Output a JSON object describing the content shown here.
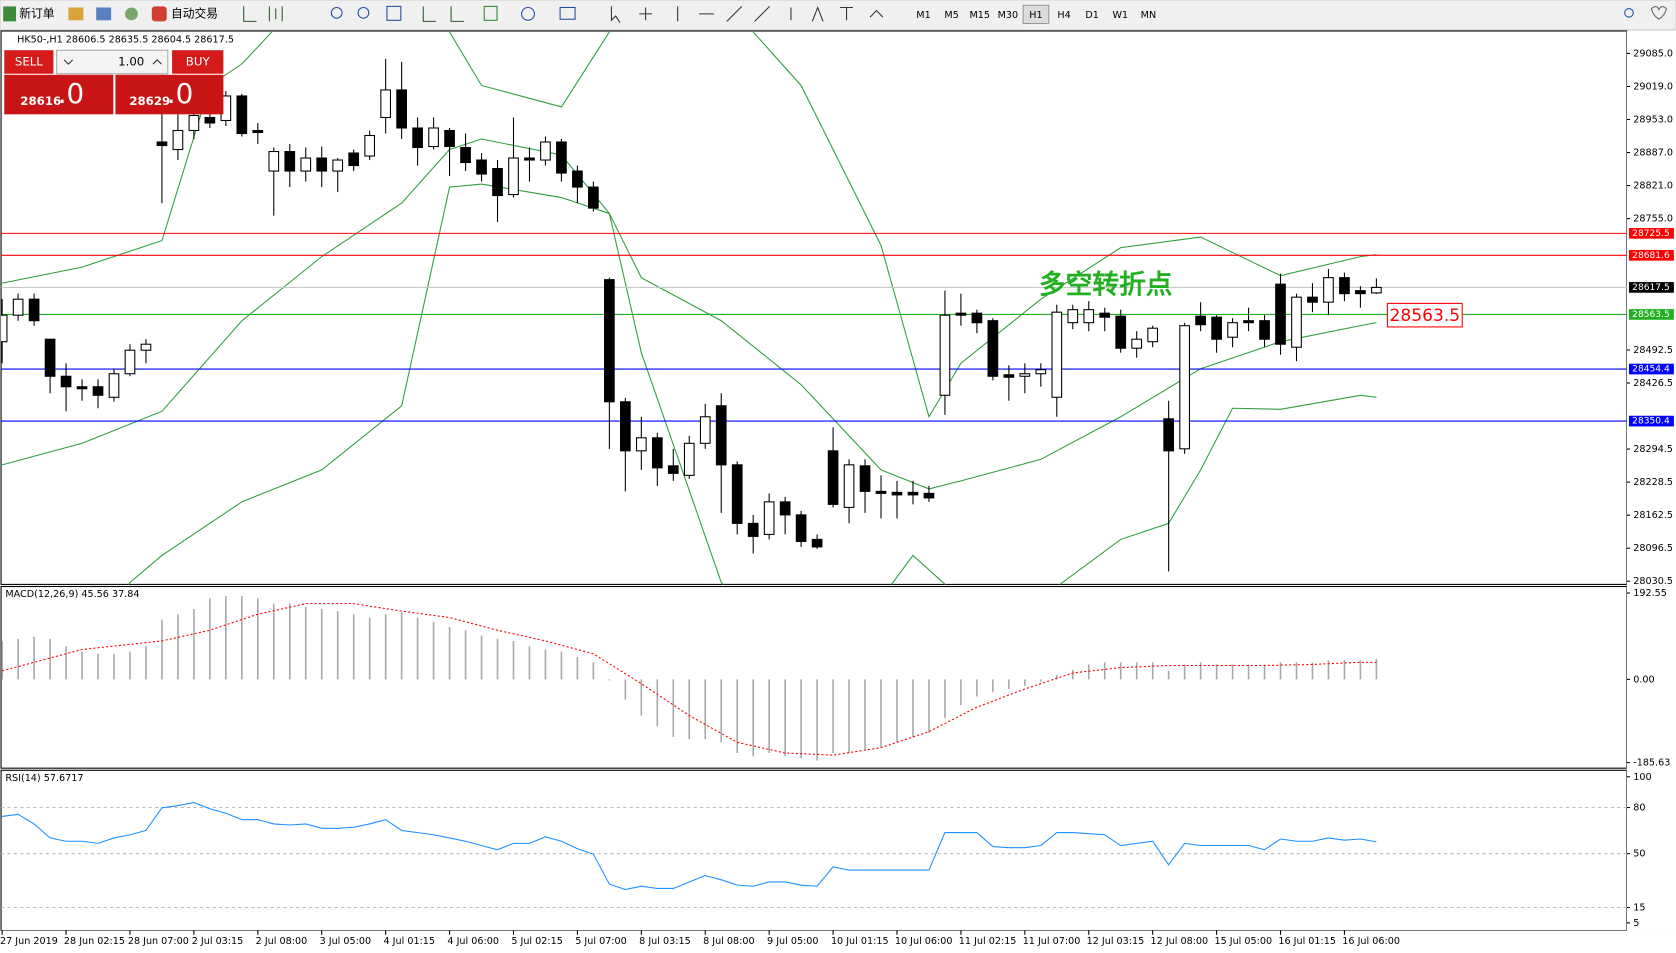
{
  "toolbar": {
    "new_order": "新订单",
    "auto_trade": "自动交易",
    "timeframes": [
      "M1",
      "M5",
      "M15",
      "M30",
      "H1",
      "H4",
      "D1",
      "W1",
      "MN"
    ],
    "active_timeframe": "H1"
  },
  "trade_panel": {
    "sell": "SELL",
    "buy": "BUY",
    "lots": "1.00",
    "sell_main": "28616",
    "sell_pips": ".0",
    "buy_main": "28629",
    "buy_pips": ".0"
  },
  "time_labels": [
    "27 Jun 2019",
    "28 Jun 02:15",
    "28 Jun 07:00",
    "2 Jul 03:15",
    "2 Jul 08:00",
    "3 Jul 05:00",
    "4 Jul 01:15",
    "4 Jul 06:00",
    "5 Jul 02:15",
    "5 Jul 07:00",
    "8 Jul 03:15",
    "8 Jul 08:00",
    "9 Jul 05:00",
    "10 Jul 01:15",
    "10 Jul 06:00",
    "11 Jul 02:15",
    "11 Jul 07:00",
    "12 Jul 03:15",
    "12 Jul 08:00",
    "15 Jul 05:00",
    "16 Jul 01:15",
    "16 Jul 06:00"
  ],
  "chart_data": [
    {
      "type": "candlestick",
      "title": "HK50-,H1  28606.5 28635.5 28604.5 28617.5",
      "up_color": "#ffffff",
      "down_color": "#000000",
      "ylim": [
        28024.1,
        29127.7
      ],
      "yticks": [
        {
          "value": 29085,
          "label": "29085.0"
        },
        {
          "value": 29019,
          "label": "29019.0"
        },
        {
          "value": 28953,
          "label": "28953.0"
        },
        {
          "value": 28887,
          "label": "28887.0"
        },
        {
          "value": 28821,
          "label": "28821.0"
        },
        {
          "value": 28755,
          "label": "28755.0"
        },
        28492.5,
        28426.5,
        28294.5,
        28228.5,
        28162.5,
        28096.5,
        28030.5
      ],
      "ohlc": [
        [
          28509,
          28594,
          28466,
          28562
        ],
        [
          28562,
          28605,
          28551,
          28594
        ],
        [
          28594,
          28605,
          28541,
          28551
        ],
        [
          28514,
          28514,
          28406,
          28440
        ],
        [
          28440,
          28466,
          28370,
          28419
        ],
        [
          28419,
          28434,
          28391,
          28415
        ],
        [
          28419,
          28434,
          28376,
          28402
        ],
        [
          28398,
          28455,
          28389,
          28445
        ],
        [
          28445,
          28504,
          28440,
          28492
        ],
        [
          28492,
          28514,
          28466,
          28504
        ],
        [
          28908,
          28978,
          28786,
          28901
        ],
        [
          28893,
          28989,
          28872,
          28931
        ],
        [
          28931,
          29000,
          28914,
          28961
        ],
        [
          28957,
          29000,
          28936,
          28946
        ],
        [
          28951,
          29010,
          28940,
          29000
        ],
        [
          29000,
          29004,
          28919,
          28925
        ],
        [
          28931,
          28946,
          28904,
          28927
        ],
        [
          28850,
          28897,
          28761,
          28889
        ],
        [
          28889,
          28904,
          28818,
          28850
        ],
        [
          28850,
          28897,
          28829,
          28876
        ],
        [
          28876,
          28899,
          28818,
          28850
        ],
        [
          28850,
          28876,
          28808,
          28872
        ],
        [
          28886,
          28893,
          28850,
          28861
        ],
        [
          28880,
          28931,
          28872,
          28921
        ],
        [
          28957,
          29074,
          28925,
          29012
        ],
        [
          29012,
          29068,
          28914,
          28936
        ],
        [
          28936,
          28957,
          28861,
          28897
        ],
        [
          28899,
          28957,
          28893,
          28936
        ],
        [
          28931,
          28936,
          28840,
          28899
        ],
        [
          28897,
          28925,
          28850,
          28867
        ],
        [
          28872,
          28886,
          28829,
          28844
        ],
        [
          28855,
          28872,
          28748,
          28801
        ],
        [
          28803,
          28957,
          28797,
          28876
        ],
        [
          28876,
          28897,
          28829,
          28872
        ],
        [
          28872,
          28919,
          28861,
          28908
        ],
        [
          28908,
          28914,
          28829,
          28846
        ],
        [
          28850,
          28861,
          28786,
          28818
        ],
        [
          28818,
          28829,
          28769,
          28776
        ],
        [
          28633,
          28637,
          28295,
          28389
        ],
        [
          28389,
          28397,
          28210,
          28291
        ],
        [
          28291,
          28359,
          28253,
          28317
        ],
        [
          28317,
          28327,
          28221,
          28257
        ],
        [
          28261,
          28295,
          28231,
          28246
        ],
        [
          28242,
          28321,
          28235,
          28306
        ],
        [
          28306,
          28385,
          28295,
          28359
        ],
        [
          28381,
          28406,
          28167,
          28263
        ],
        [
          28263,
          28270,
          28124,
          28146
        ],
        [
          28146,
          28163,
          28086,
          28120
        ],
        [
          28124,
          28206,
          28114,
          28189
        ],
        [
          28189,
          28199,
          28124,
          28163
        ],
        [
          28163,
          28171,
          28099,
          28110
        ],
        [
          28114,
          28124,
          28095,
          28099
        ],
        [
          28291,
          28338,
          28178,
          28184
        ],
        [
          28178,
          28274,
          28146,
          28263
        ],
        [
          28261,
          28274,
          28167,
          28210
        ],
        [
          28210,
          28242,
          28156,
          28206
        ],
        [
          28208,
          28231,
          28156,
          28203
        ],
        [
          28208,
          28231,
          28184,
          28203
        ],
        [
          28206,
          28221,
          28189,
          28197
        ],
        [
          28402,
          28611,
          28363,
          28562
        ],
        [
          28566,
          28605,
          28541,
          28562
        ],
        [
          28566,
          28573,
          28526,
          28547
        ],
        [
          28551,
          28556,
          28432,
          28440
        ],
        [
          28443,
          28462,
          28391,
          28438
        ],
        [
          28440,
          28466,
          28406,
          28445
        ],
        [
          28445,
          28466,
          28419,
          28453
        ],
        [
          28398,
          28583,
          28359,
          28568
        ],
        [
          28547,
          28583,
          28534,
          28573
        ],
        [
          28547,
          28590,
          28530,
          28573
        ],
        [
          28566,
          28577,
          28530,
          28558
        ],
        [
          28560,
          28573,
          28487,
          28496
        ],
        [
          28496,
          28530,
          28477,
          28514
        ],
        [
          28509,
          28541,
          28498,
          28536
        ],
        [
          28355,
          28391,
          28050,
          28291
        ],
        [
          28295,
          28547,
          28285,
          28541
        ],
        [
          28560,
          28588,
          28530,
          28543
        ],
        [
          28558,
          28562,
          28487,
          28514
        ],
        [
          28518,
          28556,
          28498,
          28547
        ],
        [
          28551,
          28577,
          28530,
          28547
        ],
        [
          28551,
          28562,
          28498,
          28514
        ],
        [
          28624,
          28645,
          28483,
          28504
        ],
        [
          28498,
          28605,
          28470,
          28598
        ],
        [
          28598,
          28626,
          28568,
          28588
        ],
        [
          28588,
          28654,
          28562,
          28637
        ],
        [
          28637,
          28647,
          28590,
          28605
        ],
        [
          28611,
          28620,
          28577,
          28605
        ],
        [
          28606.5,
          28635.5,
          28604.5,
          28617.5
        ]
      ],
      "bands": [
        {
          "color": "#2e9e3e",
          "x": [
            0,
            5,
            10,
            13,
            15,
            20,
            25,
            28,
            30,
            35,
            38,
            40,
            45,
            47,
            50,
            55,
            58,
            60,
            65,
            70,
            75,
            80,
            85,
            86
          ],
          "values": [
            28626,
            28658,
            28711,
            29021,
            29064,
            29234,
            29234,
            29128,
            29021,
            28978,
            29128,
            29213,
            29213,
            29128,
            29021,
            28701,
            28359,
            28466,
            28594,
            28697,
            28718,
            28641,
            28679,
            28683
          ]
        },
        {
          "color": "#2e9e3e",
          "x": [
            0,
            5,
            10,
            15,
            20,
            25,
            28,
            30,
            35,
            38,
            40,
            45,
            50,
            55,
            58,
            60,
            65,
            70,
            75,
            80,
            85,
            86
          ],
          "values": [
            28263,
            28306,
            28370,
            28551,
            28679,
            28786,
            28893,
            28914,
            28882,
            28765,
            28637,
            28551,
            28423,
            28253,
            28215,
            28231,
            28274,
            28359,
            28455,
            28509,
            28541,
            28547
          ]
        },
        {
          "color": "#2e9e3e",
          "x": [
            5,
            8,
            10,
            15,
            20,
            25,
            28,
            30,
            35,
            38,
            40,
            45,
            50,
            55,
            57,
            60,
            65,
            70,
            73,
            75,
            77,
            80,
            85,
            86
          ],
          "values": [
            27868,
            28028,
            28082,
            28189,
            28253,
            28381,
            28818,
            28824,
            28797,
            28765,
            28487,
            28028,
            27868,
            27996,
            28082,
            27996,
            27996,
            28114,
            28146,
            28253,
            28376,
            28374,
            28402,
            28398
          ]
        }
      ],
      "hlines": [
        {
          "value": 28725.5,
          "color": "#ff0000",
          "box_color": "#ff0000"
        },
        {
          "value": 28681.6,
          "color": "#ff0000",
          "box_color": "#ff0000"
        },
        {
          "value": 28617.5,
          "color": "#c8c8c8",
          "box_color": "#000000"
        },
        {
          "value": 28563.5,
          "color": "#22b022",
          "box_color": "#22b022"
        },
        {
          "value": 28454.4,
          "color": "#0000ff",
          "box_color": "#0000ff"
        },
        {
          "value": 28350.4,
          "color": "#0000ff",
          "box_color": "#0000ff"
        }
      ],
      "annotations": [
        {
          "text": "多空转折点",
          "color": "#22b022"
        },
        {
          "text": "28563.5",
          "color": "#ff0000"
        }
      ]
    },
    {
      "type": "macd",
      "title": "MACD(12,26,9) 45.56 37.84",
      "ylim": [
        -198,
        207
      ],
      "yticks": [
        192.55,
        {
          "value": 0,
          "label": "0.00"
        },
        -185.63
      ],
      "histogram": {
        "color": "#a8a8a8",
        "values": [
          85.7,
          90.4,
          95.2,
          90.4,
          73.8,
          61.9,
          57.1,
          57.1,
          61.9,
          73.8,
          133.3,
          145.2,
          157.1,
          180.9,
          185.6,
          185.6,
          180.9,
          169,
          169,
          161.8,
          157.1,
          152.3,
          145.2,
          138,
          145.2,
          149.9,
          138,
          128.5,
          116.6,
          109.5,
          97.6,
          90.4,
          85.7,
          73.8,
          66.6,
          61.9,
          50,
          38.1,
          -2.4,
          -45.2,
          -80.9,
          -104.7,
          -128.5,
          -133.3,
          -133.3,
          -140.4,
          -164.2,
          -171.4,
          -164.2,
          -171.4,
          -176.1,
          -180.9,
          -164.2,
          -164.2,
          -157.1,
          -152.3,
          -140.4,
          -128.5,
          -119,
          -85.7,
          -57.1,
          -38.1,
          -28.6,
          -21.4,
          -14.3,
          -4.8,
          9.5,
          21.4,
          33.3,
          38.1,
          38.1,
          38.1,
          38.1,
          19,
          33.3,
          38.1,
          33.3,
          33.3,
          33.3,
          33.3,
          38.1,
          38.1,
          38.1,
          42.8,
          42.8,
          42.8,
          45.56
        ]
      },
      "signal": {
        "color": "#ff0000",
        "x": [
          0,
          5,
          10,
          13,
          16,
          19,
          22,
          25,
          28,
          31,
          34,
          37,
          40,
          43,
          46,
          49,
          52,
          55,
          58,
          61,
          64,
          67,
          70,
          73,
          76,
          79,
          82,
          85,
          86
        ],
        "values": [
          19,
          66.6,
          85.7,
          109.5,
          145.2,
          169,
          169,
          152.3,
          138,
          109.5,
          85.7,
          57.1,
          -9.5,
          -80.9,
          -140.4,
          -164.2,
          -169,
          -152.3,
          -116.6,
          -61.9,
          -21.4,
          14.3,
          26.2,
          30.9,
          30.9,
          30.9,
          33.3,
          38.1,
          37.84
        ]
      }
    },
    {
      "type": "line",
      "title": "RSI(14) 57.6717",
      "color": "#1e90ff",
      "ylim": [
        0,
        104.2
      ],
      "yticks": [
        100,
        80,
        50,
        15,
        5
      ],
      "values": [
        74.2,
        75.6,
        69.3,
        60.2,
        58.1,
        58.1,
        56.7,
        60.2,
        62.3,
        65.1,
        79.8,
        81.2,
        83.3,
        79.1,
        76.3,
        72.1,
        72.1,
        69.3,
        68.6,
        69.3,
        66.5,
        66.5,
        67.2,
        69.3,
        72.1,
        65.1,
        63.7,
        62.3,
        60.2,
        58.1,
        55.3,
        52.5,
        56.7,
        56.7,
        60.9,
        58.1,
        53.2,
        49.7,
        30.2,
        26.7,
        28.8,
        27.4,
        27.4,
        31.6,
        35.8,
        33,
        29.5,
        28.8,
        31.6,
        31.6,
        29.5,
        28.8,
        41.4,
        39.3,
        39.3,
        39.3,
        39.3,
        39.3,
        39.3,
        63.7,
        63.7,
        63.7,
        54.6,
        53.9,
        53.9,
        55.3,
        63.7,
        63.7,
        63,
        62.3,
        55.3,
        56.7,
        58.1,
        42.7,
        56.7,
        55.3,
        55.3,
        55.3,
        55.3,
        52.5,
        59.5,
        58.1,
        58.1,
        60.2,
        58.8,
        59.5,
        57.6717
      ]
    }
  ]
}
